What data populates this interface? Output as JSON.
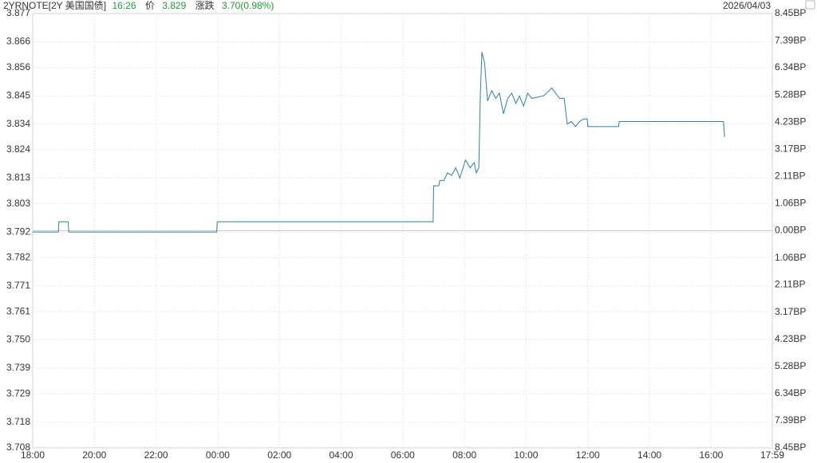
{
  "header": {
    "title": "2YRNOTE[2Y 美国国债]",
    "time": "16:26",
    "price_label": "价",
    "price": "3.829",
    "change_label": "涨跌",
    "change": "3.70(0.98%)",
    "date": "2026/04/03"
  },
  "chart_data": {
    "type": "line",
    "series": [
      {
        "color": "#2f7ea3",
        "x": [
          "18:00",
          "18:50",
          "18:51",
          "19:09",
          "19:10",
          "23:58",
          "23:59",
          "06:59",
          "07:00",
          "07:10",
          "07:12",
          "07:20",
          "07:27",
          "07:35",
          "07:43",
          "07:51",
          "08:02",
          "08:11",
          "08:19",
          "08:23",
          "08:28",
          "08:31",
          "08:34",
          "08:39",
          "08:45",
          "08:53",
          "09:01",
          "09:08",
          "09:16",
          "09:24",
          "09:32",
          "09:40",
          "09:47",
          "09:55",
          "10:03",
          "10:11",
          "10:34",
          "10:50",
          "11:05",
          "11:14",
          "11:20",
          "11:28",
          "11:36",
          "11:44",
          "11:52",
          "11:59",
          "12:00",
          "13:00",
          "13:01",
          "16:24",
          "16:26"
        ],
        "values": [
          3.792,
          3.792,
          3.796,
          3.796,
          3.792,
          3.792,
          3.796,
          3.796,
          3.81,
          3.81,
          3.812,
          3.812,
          3.815,
          3.814,
          3.817,
          3.813,
          3.82,
          3.817,
          3.819,
          3.815,
          3.817,
          3.846,
          3.862,
          3.858,
          3.843,
          3.847,
          3.844,
          3.846,
          3.838,
          3.844,
          3.846,
          3.842,
          3.845,
          3.841,
          3.846,
          3.844,
          3.845,
          3.848,
          3.844,
          3.844,
          3.834,
          3.835,
          3.833,
          3.835,
          3.836,
          3.836,
          3.833,
          3.833,
          3.835,
          3.835,
          3.829
        ]
      }
    ],
    "xlim": [
      "18:00",
      "17:59"
    ],
    "xticks": [
      "18:00",
      "20:00",
      "22:00",
      "00:00",
      "02:00",
      "04:00",
      "06:00",
      "08:00",
      "10:00",
      "12:00",
      "14:00",
      "16:00",
      "17:59"
    ],
    "ylim": [
      3.708,
      3.877
    ],
    "yticks": [
      3.877,
      3.866,
      3.856,
      3.845,
      3.834,
      3.824,
      3.813,
      3.803,
      3.792,
      3.782,
      3.771,
      3.761,
      {
        "value": 3.75,
        "label": "3.750"
      },
      3.739,
      3.729,
      3.718,
      3.708
    ],
    "y2lim": [
      -8.45,
      8.45
    ],
    "y2ticks": [
      {
        "value": 8.45,
        "label": "8.45BP"
      },
      {
        "value": 7.39,
        "label": "7.39BP"
      },
      {
        "value": 6.34,
        "label": "6.34BP"
      },
      {
        "value": 5.28,
        "label": "5.28BP"
      },
      {
        "value": 4.23,
        "label": "4.23BP"
      },
      {
        "value": 3.17,
        "label": "3.17BP"
      },
      {
        "value": 2.11,
        "label": "2.11BP"
      },
      {
        "value": 1.06,
        "label": "1.06BP"
      },
      {
        "value": 0,
        "label": "0.00BP"
      },
      {
        "value": -1.06,
        "label": "1.06BP"
      },
      {
        "value": -2.11,
        "label": "2.11BP"
      },
      {
        "value": -3.17,
        "label": "3.17BP"
      },
      {
        "value": -4.23,
        "label": "4.23BP"
      },
      {
        "value": -5.28,
        "label": "5.28BP"
      },
      {
        "value": -6.34,
        "label": "6.34BP"
      },
      {
        "value": -7.39,
        "label": "7.39BP"
      },
      {
        "value": -8.45,
        "label": "8.45BP"
      }
    ],
    "grid": true,
    "up_color": "#1f9a3a",
    "down_color": "#d0021b",
    "flat_color": "#555555"
  }
}
